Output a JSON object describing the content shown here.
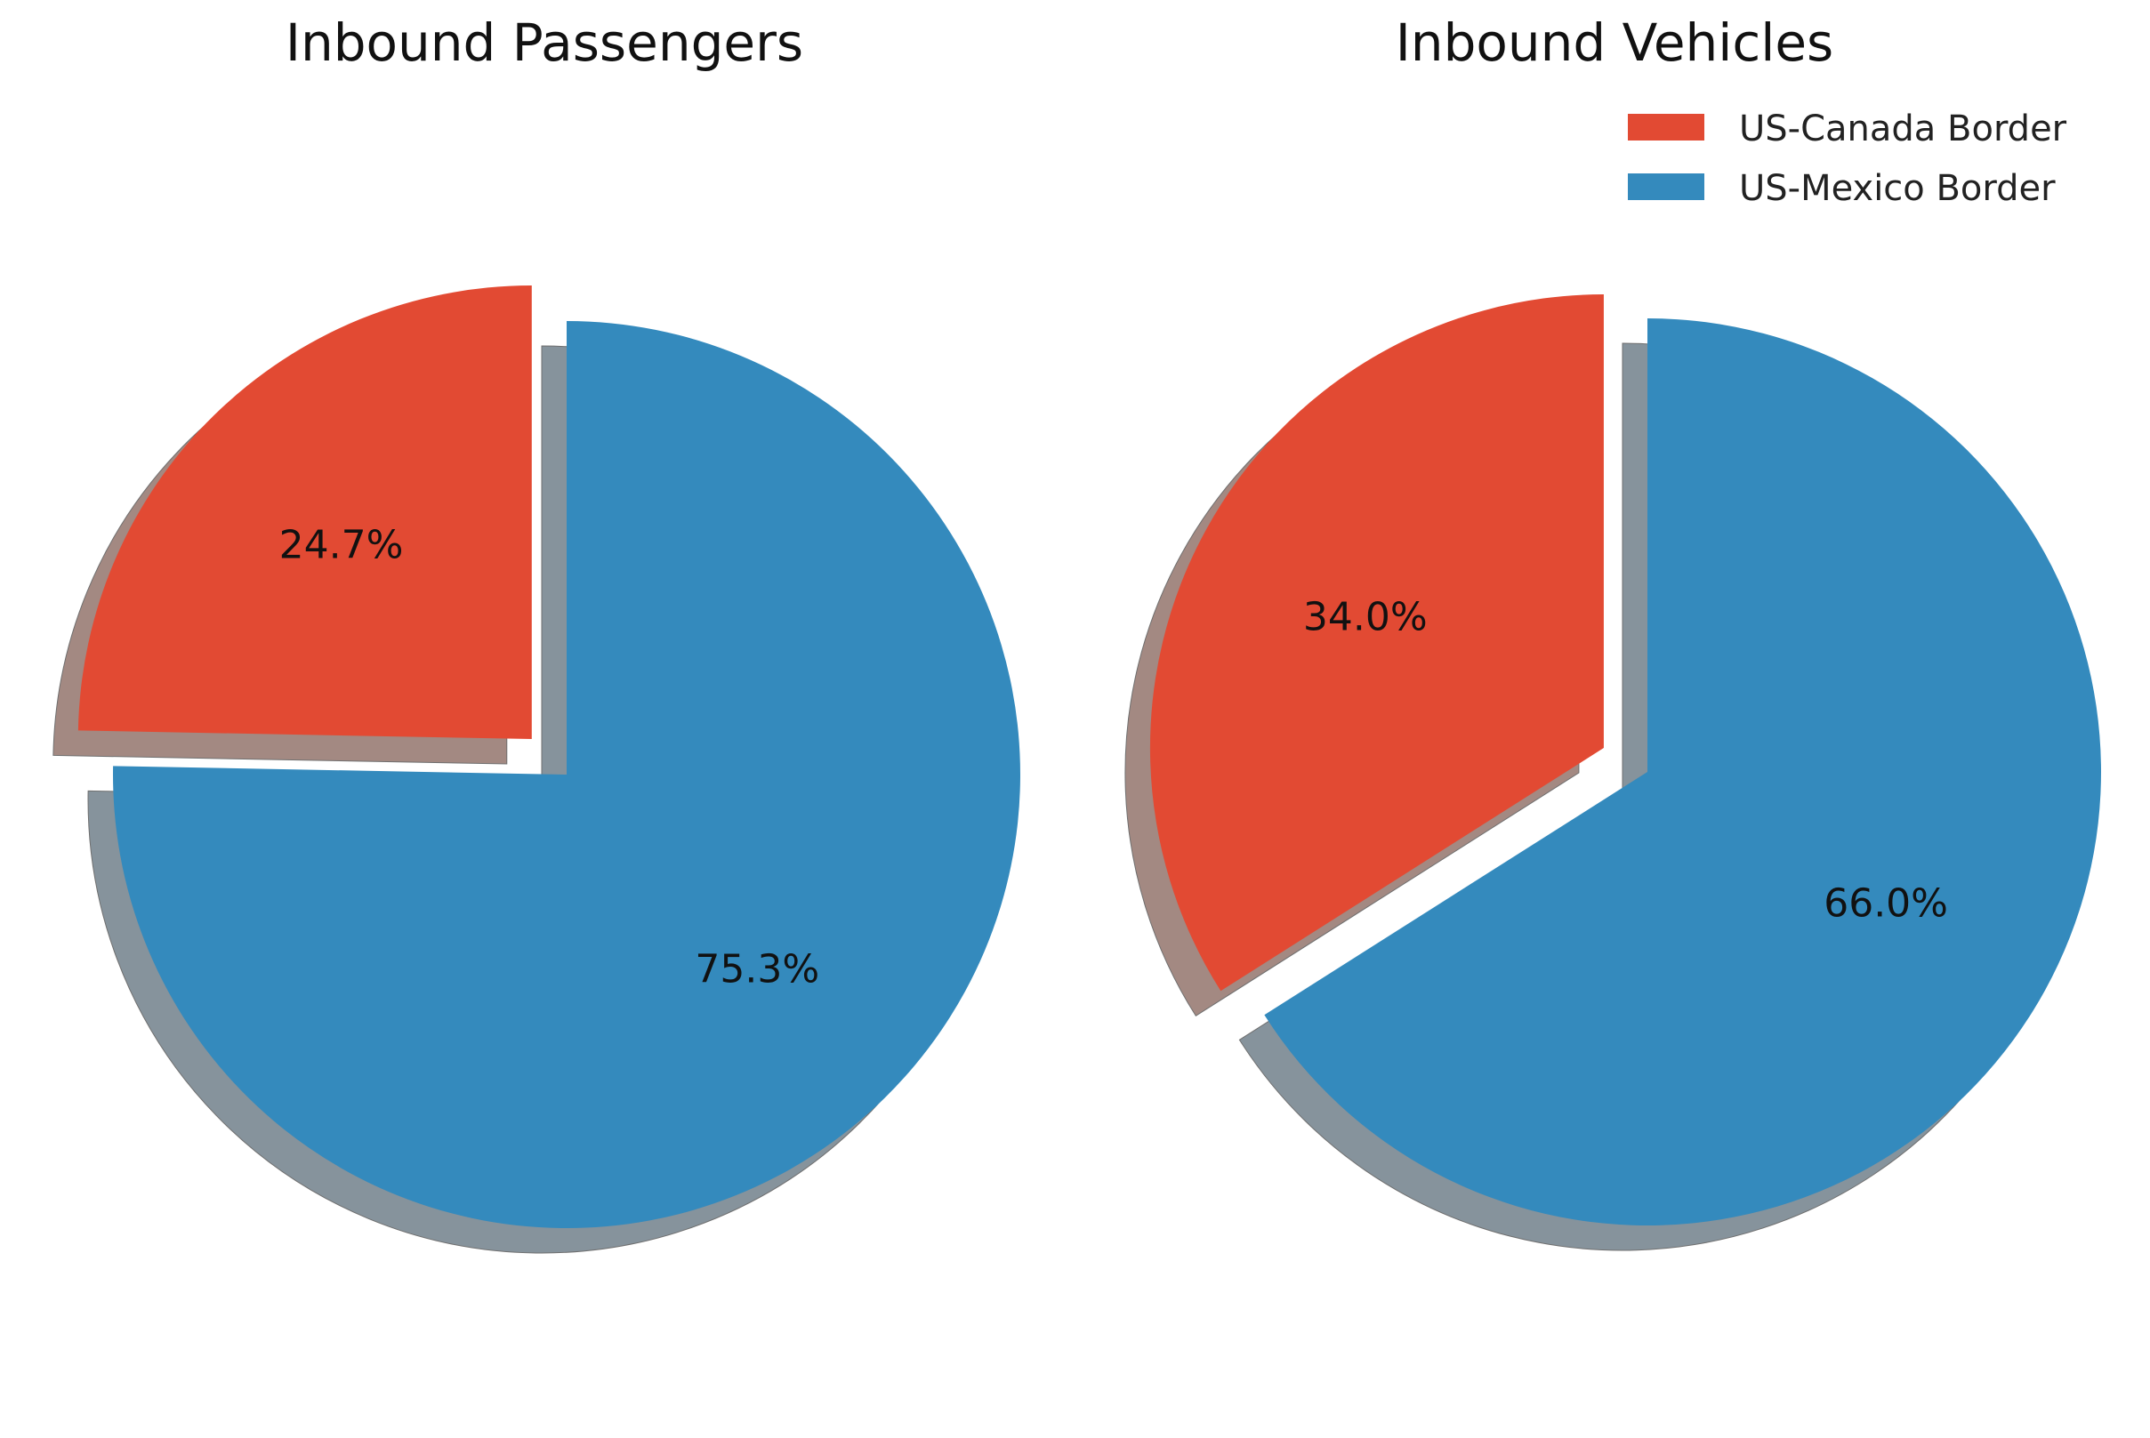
{
  "chart_data": [
    {
      "type": "pie",
      "title": "Inbound Passengers",
      "categories": [
        "US-Canada Border",
        "US-Mexico Border"
      ],
      "values": [
        24.7,
        75.3
      ],
      "labels": [
        "24.7%",
        "75.3%"
      ],
      "colors": [
        "#E24A33",
        "#348ABD"
      ],
      "exploded": [
        "US-Canada Border"
      ],
      "shadow": true,
      "start_angle": 90,
      "direction": "counterclockwise"
    },
    {
      "type": "pie",
      "title": "Inbound Vehicles",
      "categories": [
        "US-Canada Border",
        "US-Mexico Border"
      ],
      "values": [
        34.0,
        66.0
      ],
      "labels": [
        "34.0%",
        "66.0%"
      ],
      "colors": [
        "#E24A33",
        "#348ABD"
      ],
      "exploded": [
        "US-Canada Border"
      ],
      "shadow": true,
      "start_angle": 90,
      "direction": "counterclockwise"
    }
  ],
  "legend": {
    "placement": "top-right",
    "items": [
      {
        "label": "US-Canada Border",
        "color": "#E24A33"
      },
      {
        "label": "US-Mexico Border",
        "color": "#348ABD"
      }
    ]
  }
}
